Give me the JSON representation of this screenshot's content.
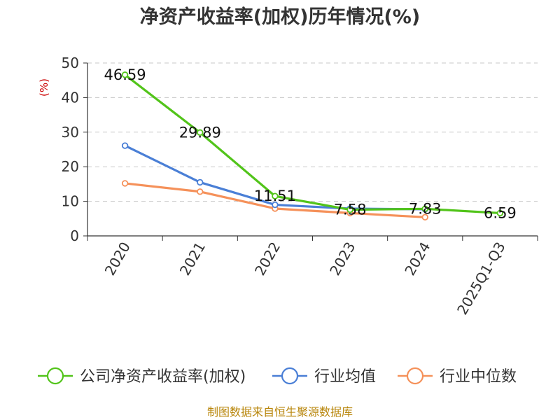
{
  "chart_data": {
    "type": "line",
    "title": "净资产收益率(加权)历年情况(%)",
    "ylabel": "(%)",
    "xlabel": "",
    "categories": [
      "2020",
      "2021",
      "2022",
      "2023",
      "2024",
      "2025Q1-Q3"
    ],
    "ylim": [
      0,
      50
    ],
    "yticks": [
      0,
      10,
      20,
      30,
      40,
      50
    ],
    "grid": true,
    "legend_position": "bottom",
    "series": [
      {
        "name": "公司净资产收益率(加权)",
        "color": "#52c41a",
        "values": [
          46.59,
          29.89,
          11.51,
          7.58,
          7.83,
          6.59
        ],
        "labels": [
          "46.59",
          "29.89",
          "11.51",
          "7.58",
          "7.83",
          "6.59"
        ]
      },
      {
        "name": "行业均值",
        "color": "#4a7fd6",
        "values": [
          26.1,
          15.5,
          9.0,
          7.9,
          7.7,
          null
        ]
      },
      {
        "name": "行业中位数",
        "color": "#f5915a",
        "values": [
          15.2,
          12.8,
          7.9,
          6.6,
          5.4,
          null
        ]
      }
    ],
    "source": "制图数据来自恒生聚源数据库"
  }
}
